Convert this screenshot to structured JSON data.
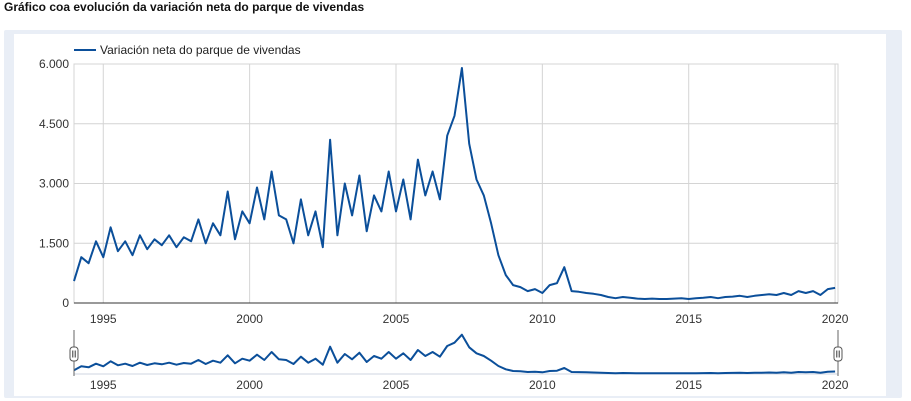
{
  "page_title": "Gráfico coa evolución da variación neta do parque de vivendas",
  "colors": {
    "series": "#0b4f9a",
    "grid": "#d4d4d4",
    "frame": "#e9eef6"
  },
  "range_selector": {
    "left_handle_icon": "pause-icon",
    "right_handle_icon": "pause-icon"
  },
  "chart_data": {
    "type": "line",
    "title": "",
    "xlabel": "",
    "ylabel": "",
    "legend_position": "top-left",
    "grid": true,
    "xlim": [
      1994.0,
      2020.1
    ],
    "ylim": [
      0,
      6000
    ],
    "x_ticks": [
      1995,
      2000,
      2005,
      2010,
      2015,
      2020
    ],
    "x_tick_labels": [
      "1995",
      "2000",
      "2005",
      "2010",
      "2015",
      "2020"
    ],
    "y_ticks": [
      0,
      1500,
      3000,
      4500,
      6000
    ],
    "y_tick_labels": [
      "0",
      "1.500",
      "3.000",
      "4.500",
      "6.000"
    ],
    "series": [
      {
        "name": "Variación neta do parque de vivendas",
        "x": [
          1994.0,
          1994.25,
          1994.5,
          1994.75,
          1995.0,
          1995.25,
          1995.5,
          1995.75,
          1996.0,
          1996.25,
          1996.5,
          1996.75,
          1997.0,
          1997.25,
          1997.5,
          1997.75,
          1998.0,
          1998.25,
          1998.5,
          1998.75,
          1999.0,
          1999.25,
          1999.5,
          1999.75,
          2000.0,
          2000.25,
          2000.5,
          2000.75,
          2001.0,
          2001.25,
          2001.5,
          2001.75,
          2002.0,
          2002.25,
          2002.5,
          2002.75,
          2003.0,
          2003.25,
          2003.5,
          2003.75,
          2004.0,
          2004.25,
          2004.5,
          2004.75,
          2005.0,
          2005.25,
          2005.5,
          2005.75,
          2006.0,
          2006.25,
          2006.5,
          2006.75,
          2007.0,
          2007.25,
          2007.5,
          2007.75,
          2008.0,
          2008.25,
          2008.5,
          2008.75,
          2009.0,
          2009.25,
          2009.5,
          2009.75,
          2010.0,
          2010.25,
          2010.5,
          2010.75,
          2011.0,
          2011.25,
          2011.5,
          2011.75,
          2012.0,
          2012.25,
          2012.5,
          2012.75,
          2013.0,
          2013.25,
          2013.5,
          2013.75,
          2014.0,
          2014.25,
          2014.5,
          2014.75,
          2015.0,
          2015.25,
          2015.5,
          2015.75,
          2016.0,
          2016.25,
          2016.5,
          2016.75,
          2017.0,
          2017.25,
          2017.5,
          2017.75,
          2018.0,
          2018.25,
          2018.5,
          2018.75,
          2019.0,
          2019.25,
          2019.5,
          2019.75,
          2020.0
        ],
        "values": [
          550,
          1150,
          1000,
          1550,
          1150,
          1900,
          1300,
          1550,
          1200,
          1700,
          1350,
          1600,
          1450,
          1700,
          1400,
          1650,
          1550,
          2100,
          1500,
          2000,
          1700,
          2800,
          1600,
          2300,
          2000,
          2900,
          2100,
          3300,
          2200,
          2100,
          1500,
          2600,
          1700,
          2300,
          1400,
          4100,
          1700,
          3000,
          2200,
          3200,
          1800,
          2700,
          2300,
          3300,
          2300,
          3100,
          2100,
          3600,
          2700,
          3300,
          2600,
          4200,
          4700,
          5900,
          4000,
          3100,
          2700,
          2000,
          1200,
          700,
          450,
          400,
          300,
          350,
          250,
          450,
          500,
          900,
          300,
          280,
          250,
          230,
          200,
          150,
          120,
          150,
          130,
          110,
          100,
          110,
          100,
          100,
          110,
          120,
          100,
          120,
          130,
          150,
          120,
          150,
          160,
          180,
          150,
          180,
          200,
          220,
          200,
          250,
          200,
          300,
          250,
          300,
          200,
          350,
          380
        ]
      }
    ]
  }
}
